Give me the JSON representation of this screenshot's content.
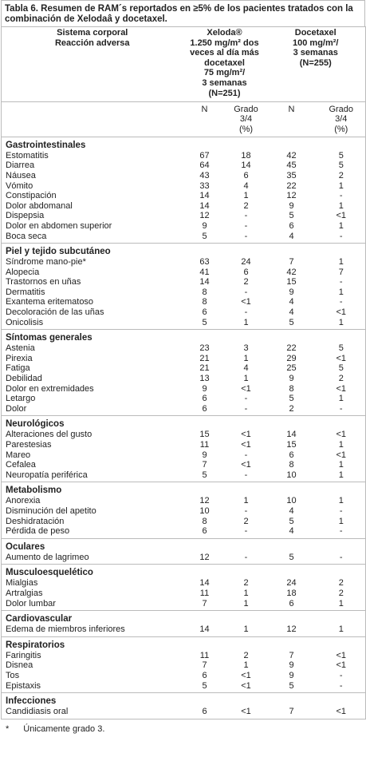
{
  "title": "Tabla 6. Resumen de RAM´s reportados en ≥5% de los pacientes tratados con la combinación de Xelodaâ y docetaxel.",
  "header": {
    "system": [
      "Sistema corporal",
      "Reacción adversa"
    ],
    "xeloda": [
      "Xeloda®",
      "1.250 mg/m² dos",
      "veces al día más",
      "docetaxel",
      "75 mg/m²/",
      "3 semanas",
      "(N=251)"
    ],
    "docetaxel": [
      "Docetaxel",
      "100 mg/m²/",
      "3 semanas",
      "(N=255)"
    ]
  },
  "subheader": [
    [
      "N"
    ],
    [
      "Grado",
      "3/4",
      "(%)"
    ],
    [
      "N"
    ],
    [
      "Grado",
      "3/4",
      "(%)"
    ]
  ],
  "groups": [
    {
      "name": "Gastrointestinales",
      "rows": [
        [
          "Estomatitis",
          "67",
          "18",
          "42",
          "5"
        ],
        [
          "Diarrea",
          "64",
          "14",
          "45",
          "5"
        ],
        [
          "Náusea",
          "43",
          "6",
          "35",
          "2"
        ],
        [
          "Vómito",
          "33",
          "4",
          "22",
          "1"
        ],
        [
          "Constipación",
          "14",
          "1",
          "12",
          "-"
        ],
        [
          "Dolor abdomanal",
          "14",
          "2",
          "9",
          "1"
        ],
        [
          "Dispepsia",
          "12",
          "-",
          "5",
          "<1"
        ],
        [
          "Dolor en abdomen superior",
          "9",
          "-",
          "6",
          "1"
        ],
        [
          "Boca seca",
          "5",
          "-",
          "4",
          "-"
        ]
      ]
    },
    {
      "name": "Piel y tejido subcutáneo",
      "rows": [
        [
          "Síndrome mano-pie*",
          "63",
          "24",
          "7",
          "1"
        ],
        [
          "Alopecia",
          "41",
          "6",
          "42",
          "7"
        ],
        [
          "Trastornos en uñas",
          "14",
          "2",
          "15",
          "-"
        ],
        [
          "Dermatitis",
          "8",
          "-",
          "9",
          "1"
        ],
        [
          "Exantema eritematoso",
          "8",
          "<1",
          "4",
          "-"
        ],
        [
          "Decoloración de las uñas",
          "6",
          "-",
          "4",
          "<1"
        ],
        [
          "Onicolisis",
          "5",
          "1",
          "5",
          "1"
        ]
      ]
    },
    {
      "name": "Síntomas generales",
      "rows": [
        [
          "Astenia",
          "23",
          "3",
          "22",
          "5"
        ],
        [
          "Pirexia",
          "21",
          "1",
          "29",
          "<1"
        ],
        [
          "Fatiga",
          "21",
          "4",
          "25",
          "5"
        ],
        [
          "Debilidad",
          "13",
          "1",
          "9",
          "2"
        ],
        [
          "Dolor en extremidades",
          "9",
          "<1",
          "8",
          "<1"
        ],
        [
          "Letargo",
          "6",
          "-",
          "5",
          "1"
        ],
        [
          "Dolor",
          "6",
          "-",
          "2",
          "-"
        ]
      ]
    },
    {
      "name": "Neurológicos",
      "rows": [
        [
          "Alteraciones del gusto",
          "15",
          "<1",
          "14",
          "<1"
        ],
        [
          "Parestesias",
          "11",
          "<1",
          "15",
          "1"
        ],
        [
          "Mareo",
          "9",
          "-",
          "6",
          "<1"
        ],
        [
          "Cefalea",
          "7",
          "<1",
          "8",
          "1"
        ],
        [
          "Neuropatía periférica",
          "5",
          "-",
          "10",
          "1"
        ]
      ]
    },
    {
      "name": "Metabolismo",
      "rows": [
        [
          "Anorexia",
          "12",
          "1",
          "10",
          "1"
        ],
        [
          "Disminución del apetito",
          "10",
          "-",
          "4",
          "-"
        ],
        [
          "Deshidratación",
          "8",
          "2",
          "5",
          "1"
        ],
        [
          "Pérdida de peso",
          "6",
          "-",
          "4",
          "-"
        ]
      ]
    },
    {
      "name": "Oculares",
      "rows": [
        [
          "Aumento de lagrimeo",
          "12",
          "-",
          "5",
          "-"
        ]
      ]
    },
    {
      "name": "Musculoesquelético",
      "rows": [
        [
          "Mialgias",
          "14",
          "2",
          "24",
          "2"
        ],
        [
          "Artralgias",
          "11",
          "1",
          "18",
          "2"
        ],
        [
          "Dolor lumbar",
          "7",
          "1",
          "6",
          "1"
        ]
      ]
    },
    {
      "name": "Cardiovascular",
      "rows": [
        [
          "Edema de miembros inferiores",
          "14",
          "1",
          "12",
          "1"
        ]
      ]
    },
    {
      "name": "Respiratorios",
      "rows": [
        [
          "Faringitis",
          "11",
          "2",
          "7",
          "<1"
        ],
        [
          "Disnea",
          "7",
          "1",
          "9",
          "<1"
        ],
        [
          "Tos",
          "6",
          "<1",
          "9",
          "-"
        ],
        [
          "Epistaxis",
          "5",
          "<1",
          "5",
          "-"
        ]
      ]
    },
    {
      "name": "Infecciones",
      "rows": [
        [
          "Candidiasis oral",
          "6",
          "<1",
          "7",
          "<1"
        ]
      ]
    }
  ],
  "footnote": {
    "mark": "*",
    "text": "Únicamente grado 3."
  }
}
